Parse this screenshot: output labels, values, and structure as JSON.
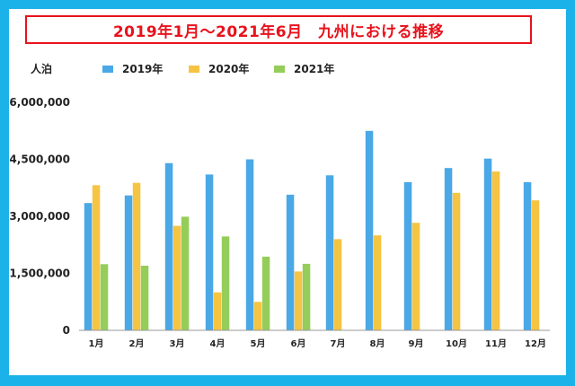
{
  "title": "2019年1月～2021年6月　九州における推移",
  "unit_label": "人泊",
  "colors": {
    "2019年": "#4aa8e6",
    "2020年": "#f6c443",
    "2021年": "#95cd5a",
    "frame": "#1ab2e8",
    "title_red": "#e8121c"
  },
  "chart_data": {
    "type": "bar",
    "title": "2019年1月～2021年6月　九州における推移",
    "ylabel": "人泊",
    "xlabel": "",
    "ylim": [
      0,
      6000000
    ],
    "yticks": [
      0,
      1500000,
      3000000,
      4500000,
      6000000
    ],
    "ytick_labels": [
      "0",
      "1,500,000",
      "3,000,000",
      "4,500,000",
      "6,000,000"
    ],
    "categories": [
      "1月",
      "2月",
      "3月",
      "4月",
      "5月",
      "6月",
      "7月",
      "8月",
      "9月",
      "10月",
      "11月",
      "12月"
    ],
    "legend_position": "top",
    "grid": false,
    "series": [
      {
        "name": "2019年",
        "color": "#4aa8e6",
        "values": [
          3350000,
          3550000,
          4400000,
          4100000,
          4500000,
          3570000,
          4080000,
          5250000,
          3900000,
          4270000,
          4520000,
          3900000
        ]
      },
      {
        "name": "2020年",
        "color": "#f6c443",
        "values": [
          3820000,
          3880000,
          2750000,
          1000000,
          750000,
          1550000,
          2400000,
          2500000,
          2830000,
          3620000,
          4180000,
          3420000
        ]
      },
      {
        "name": "2021年",
        "color": "#95cd5a",
        "values": [
          1740000,
          1700000,
          2990000,
          2470000,
          1940000,
          1750000,
          null,
          null,
          null,
          null,
          null,
          null
        ]
      }
    ]
  }
}
